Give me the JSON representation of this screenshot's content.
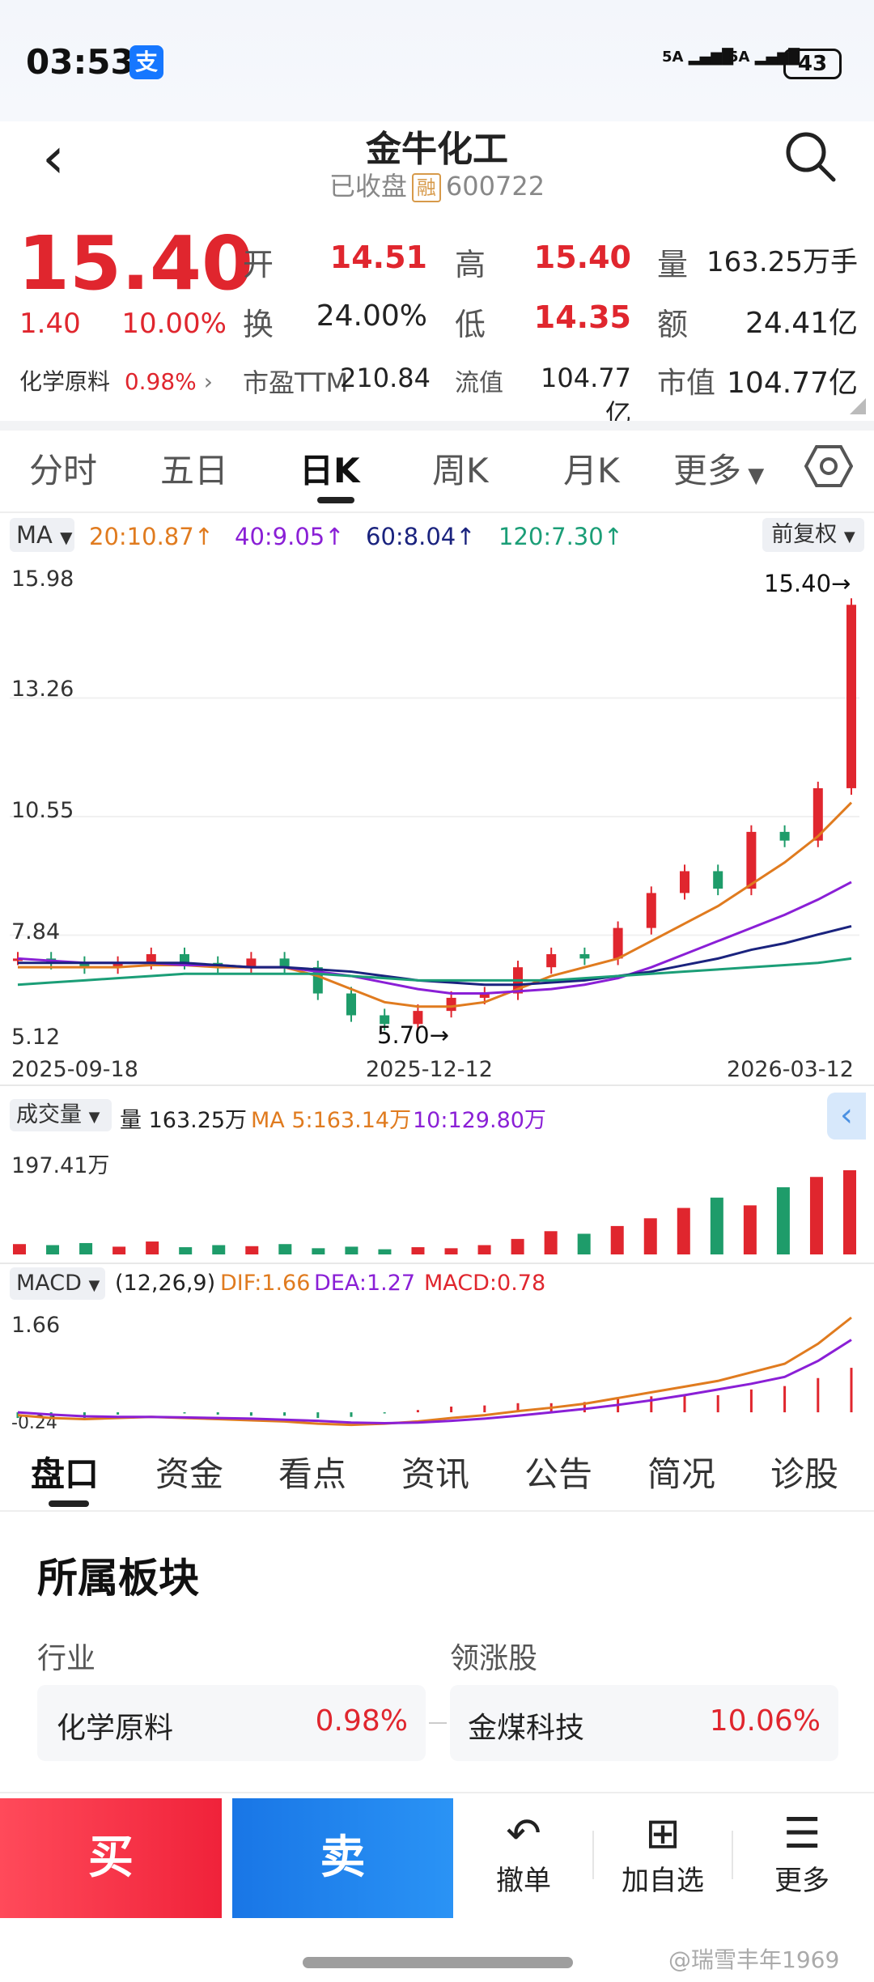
{
  "status_bar": {
    "time": "03:53",
    "app_badge": "支",
    "signal1": "5A",
    "signal2": "5A",
    "battery": "43"
  },
  "header": {
    "title": "金牛化工",
    "status": "已收盘",
    "margin_badge": "融",
    "code": "600722"
  },
  "quote": {
    "price": "15.40",
    "change": "1.40",
    "change_pct": "10.00%",
    "open_label": "开",
    "open": "14.51",
    "high_label": "高",
    "high": "15.40",
    "volume_label": "量",
    "volume": "163.25万手",
    "turnover_label": "换",
    "turnover": "24.00%",
    "low_label": "低",
    "low": "14.35",
    "amount_label": "额",
    "amount": "24.41亿",
    "sector_name": "化学原料",
    "sector_pct": "0.98%",
    "pe_label": "市盈TTM",
    "pe": "210.84",
    "float_label": "流值",
    "float_cap": "104.77亿",
    "mcap_label": "市值",
    "mcap": "104.77亿"
  },
  "chart_tabs": [
    "分时",
    "五日",
    "日K",
    "周K",
    "月K",
    "更多"
  ],
  "ma_legend": {
    "label": "MA",
    "ma20": "20:10.87↑",
    "ma40": "40:9.05↑",
    "ma60": "60:8.04↑",
    "ma120": "120:7.30↑",
    "adjust": "前复权"
  },
  "colors": {
    "up": "#e0262e",
    "down": "#1e9c6a",
    "ma20": "#e07b1f",
    "ma40": "#8a1fd6",
    "ma60": "#1a237e",
    "ma120": "#1b9e77",
    "buy": "#f0223a",
    "sell": "#1976e6"
  },
  "chart_data": [
    {
      "type": "line",
      "title": "日K",
      "y_ticks": [
        "15.98",
        "13.26",
        "10.55",
        "7.84",
        "5.12"
      ],
      "ylim": [
        5.12,
        15.98
      ],
      "x_ticks": [
        "2025-09-18",
        "2025-12-12",
        "2026-03-12"
      ],
      "max_label": "15.40→",
      "min_label": "5.70→",
      "x": [
        0,
        5,
        10,
        15,
        20,
        25,
        30,
        35,
        40,
        45,
        50,
        55,
        60,
        65,
        70,
        75,
        80,
        85,
        90,
        95,
        100,
        105,
        110,
        115,
        120,
        125
      ],
      "series": [
        {
          "name": "close",
          "values": [
            7.3,
            7.2,
            7.1,
            7.2,
            7.4,
            7.2,
            7.1,
            7.3,
            7.1,
            6.5,
            6.0,
            5.8,
            6.1,
            6.4,
            6.5,
            7.1,
            7.4,
            7.3,
            8.0,
            8.8,
            9.3,
            8.9,
            10.2,
            10.0,
            11.2,
            15.4
          ]
        },
        {
          "name": "MA20",
          "values": [
            7.1,
            7.1,
            7.1,
            7.1,
            7.15,
            7.15,
            7.1,
            7.1,
            7.1,
            6.9,
            6.6,
            6.3,
            6.2,
            6.2,
            6.3,
            6.6,
            6.9,
            7.1,
            7.3,
            7.7,
            8.1,
            8.5,
            9.0,
            9.5,
            10.1,
            10.87
          ]
        },
        {
          "name": "MA40",
          "values": [
            7.3,
            7.25,
            7.2,
            7.2,
            7.2,
            7.15,
            7.15,
            7.1,
            7.1,
            7.0,
            6.9,
            6.75,
            6.6,
            6.5,
            6.5,
            6.55,
            6.6,
            6.7,
            6.85,
            7.1,
            7.4,
            7.7,
            8.0,
            8.3,
            8.65,
            9.05
          ]
        },
        {
          "name": "MA60",
          "values": [
            7.2,
            7.2,
            7.2,
            7.2,
            7.2,
            7.2,
            7.15,
            7.1,
            7.1,
            7.05,
            7.0,
            6.9,
            6.8,
            6.75,
            6.7,
            6.7,
            6.75,
            6.8,
            6.9,
            7.0,
            7.15,
            7.3,
            7.5,
            7.65,
            7.85,
            8.04
          ]
        },
        {
          "name": "MA120",
          "values": [
            6.7,
            6.75,
            6.8,
            6.85,
            6.9,
            6.95,
            6.95,
            6.95,
            6.95,
            6.95,
            6.9,
            6.85,
            6.8,
            6.8,
            6.8,
            6.8,
            6.8,
            6.85,
            6.9,
            6.95,
            7.0,
            7.05,
            7.1,
            7.15,
            7.2,
            7.3
          ]
        }
      ]
    },
    {
      "type": "bar",
      "title": "成交量",
      "legend": {
        "label": "成交量",
        "vol": "量 163.25万",
        "ma5": "MA 5:163.14万",
        "ma10": "10:129.80万"
      },
      "y_ticks": [
        "197.41万"
      ],
      "ylim": [
        0,
        197.41
      ],
      "values": [
        20,
        18,
        22,
        15,
        25,
        14,
        18,
        16,
        20,
        12,
        15,
        10,
        14,
        12,
        18,
        30,
        45,
        40,
        55,
        70,
        90,
        110,
        95,
        130,
        150,
        163
      ]
    },
    {
      "type": "line",
      "title": "MACD",
      "legend": {
        "label": "MACD",
        "params": "(12,26,9)",
        "dif": "DIF:1.66",
        "dea": "DEA:1.27",
        "macd": "MACD:0.78"
      },
      "y_ticks": [
        "1.66",
        "-0.24"
      ],
      "ylim": [
        -0.24,
        1.66
      ],
      "series": [
        {
          "name": "DIF",
          "values": [
            -0.05,
            -0.1,
            -0.12,
            -0.1,
            -0.08,
            -0.1,
            -0.12,
            -0.14,
            -0.16,
            -0.2,
            -0.22,
            -0.2,
            -0.16,
            -0.1,
            -0.05,
            0.02,
            0.08,
            0.15,
            0.25,
            0.35,
            0.45,
            0.55,
            0.7,
            0.85,
            1.2,
            1.66
          ]
        },
        {
          "name": "DEA",
          "values": [
            0.0,
            -0.04,
            -0.07,
            -0.08,
            -0.08,
            -0.09,
            -0.1,
            -0.11,
            -0.13,
            -0.15,
            -0.18,
            -0.19,
            -0.18,
            -0.15,
            -0.11,
            -0.06,
            0.0,
            0.06,
            0.13,
            0.21,
            0.3,
            0.4,
            0.5,
            0.62,
            0.9,
            1.27
          ]
        }
      ]
    }
  ],
  "sub_tabs": [
    "盘口",
    "资金",
    "看点",
    "资讯",
    "公告",
    "简况",
    "诊股"
  ],
  "sector_section": {
    "title": "所属板块",
    "industry_label": "行业",
    "industry_name": "化学原料",
    "industry_pct": "0.98%",
    "leader_label": "领涨股",
    "leader_name": "金煤科技",
    "leader_pct": "10.06%"
  },
  "bottom_bar": {
    "buy": "买",
    "sell": "卖",
    "cancel": "撤单",
    "watch": "加自选",
    "more": "更多"
  },
  "watermark": "@瑞雪丰年1969"
}
